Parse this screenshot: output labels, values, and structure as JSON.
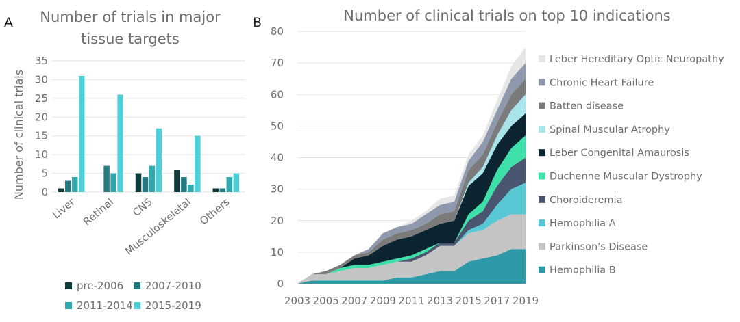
{
  "chart_data": [
    {
      "panel_letter": "A",
      "type": "bar",
      "title": "Number of trials in major tissue targets",
      "title_lines": [
        "Number of trials in major",
        "tissue targets"
      ],
      "xlabel": "",
      "ylabel": "Number of clinical trials",
      "ylim": [
        0,
        35
      ],
      "yticks": [
        "0",
        "5",
        "10",
        "15",
        "20",
        "25",
        "30",
        "35"
      ],
      "grid": true,
      "legend_position": "bottom",
      "categories": [
        "Liver",
        "Retinal",
        "CNS",
        "Musculoskeletal",
        "Others"
      ],
      "series": [
        {
          "name": "pre-2006",
          "color": "#0f3a3a",
          "values": [
            1,
            0,
            5,
            6,
            1
          ]
        },
        {
          "name": "2007-2010",
          "color": "#237a80",
          "values": [
            3,
            7,
            4,
            4,
            1
          ]
        },
        {
          "name": "2011-2014",
          "color": "#2fa8ae",
          "values": [
            4,
            5,
            7,
            2,
            4
          ]
        },
        {
          "name": "2015-2019",
          "color": "#4fd0d8",
          "values": [
            31,
            26,
            17,
            15,
            5
          ]
        }
      ]
    },
    {
      "panel_letter": "B",
      "type": "area",
      "stacked": true,
      "title": "Number of clinical trials on top 10 indications",
      "xlabel": "",
      "ylabel": "",
      "ylim": [
        0,
        80
      ],
      "yticks": [
        "0",
        "10",
        "20",
        "30",
        "40",
        "50",
        "60",
        "70",
        "80"
      ],
      "x": [
        2003,
        2004,
        2005,
        2006,
        2007,
        2008,
        2009,
        2010,
        2011,
        2012,
        2013,
        2014,
        2015,
        2016,
        2017,
        2018,
        2019
      ],
      "xticks": [
        "2003",
        "2005",
        "2007",
        "2009",
        "2011",
        "2013",
        "2015",
        "2017",
        "2019"
      ],
      "grid": true,
      "legend_position": "right",
      "series": [
        {
          "name": "Hemophilia B",
          "color": "#2e9aa8",
          "values": [
            0,
            1,
            1,
            1,
            1,
            1,
            1,
            2,
            2,
            3,
            4,
            4,
            7,
            8,
            9,
            11,
            11
          ]
        },
        {
          "name": "Parkinson's Disease",
          "color": "#c4c4c4",
          "values": [
            0,
            2,
            2,
            3,
            4,
            4,
            5,
            5,
            5,
            6,
            8,
            8,
            9,
            9,
            11,
            11,
            11
          ]
        },
        {
          "name": "Hemophilia A",
          "color": "#58c8d4",
          "values": [
            0,
            0,
            0,
            0,
            0,
            0,
            0,
            0,
            0,
            0,
            0,
            0,
            1,
            2,
            5,
            8,
            10
          ]
        },
        {
          "name": "Choroideremia",
          "color": "#4a5670",
          "values": [
            0,
            0,
            0,
            0,
            0,
            0,
            0,
            0,
            1,
            1,
            1,
            1,
            3,
            4,
            6,
            7,
            8
          ]
        },
        {
          "name": "Duchenne Muscular Dystrophy",
          "color": "#3ee0aa",
          "values": [
            0,
            0,
            0,
            1,
            1,
            1,
            1,
            1,
            1,
            1,
            0,
            0,
            2,
            3,
            5,
            6,
            7
          ]
        },
        {
          "name": "Leber Congenital Amaurosis",
          "color": "#0c2430",
          "values": [
            0,
            0,
            0,
            0,
            2,
            3,
            5,
            6,
            6,
            6,
            6,
            7,
            9,
            9,
            8,
            7,
            7
          ]
        },
        {
          "name": "Spinal Muscular Atrophy",
          "color": "#a8e4ea",
          "values": [
            0,
            0,
            0,
            0,
            0,
            0,
            0,
            0,
            0,
            0,
            0,
            0,
            1,
            2,
            3,
            5,
            6
          ]
        },
        {
          "name": "Batten disease",
          "color": "#7b7b7b",
          "values": [
            0,
            0,
            1,
            1,
            1,
            1,
            2,
            2,
            2,
            2,
            3,
            3,
            4,
            4,
            4,
            5,
            5
          ]
        },
        {
          "name": "Chronic Heart Failure",
          "color": "#8f99ad",
          "values": [
            0,
            0,
            0,
            0,
            0,
            1,
            2,
            2,
            2,
            3,
            3,
            3,
            3,
            4,
            4,
            5,
            5
          ]
        },
        {
          "name": "Leber Hereditary Optic Neuropathy",
          "color": "#e6e6e6",
          "values": [
            0,
            0,
            0,
            0,
            0,
            0,
            0,
            0,
            1,
            1,
            2,
            2,
            2,
            2,
            3,
            4,
            5
          ]
        }
      ]
    }
  ]
}
